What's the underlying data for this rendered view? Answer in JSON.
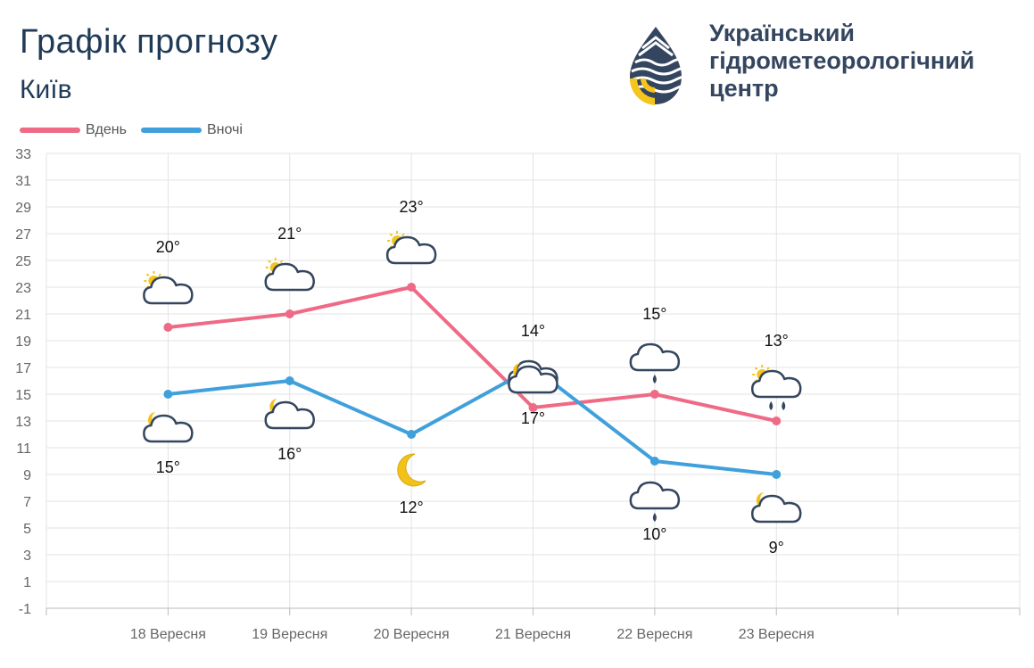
{
  "header": {
    "title": "Графік прогнозу",
    "city": "Київ",
    "org_line1": "Український",
    "org_line2": "гідрометеорологічний",
    "org_line3": "центр"
  },
  "legend": {
    "day_label": "Вдень",
    "night_label": "Вночі"
  },
  "colors": {
    "day": "#ee6a85",
    "night": "#3fa0dc",
    "title": "#1f3b57",
    "logo_dark": "#34465f",
    "logo_yellow": "#f5c51c"
  },
  "chart_data": {
    "type": "line",
    "categories": [
      "18 Вересня",
      "19 Вересня",
      "20 Вересня",
      "21 Вересня",
      "22 Вересня",
      "23 Вересня"
    ],
    "series": [
      {
        "name": "Вдень",
        "values": [
          20,
          21,
          23,
          14,
          15,
          13
        ],
        "labels": [
          "20°",
          "21°",
          "23°",
          "14°",
          "15°",
          "13°"
        ],
        "icons": [
          "sun-cloud-icon",
          "sun-cloud-icon",
          "sun-cloud-icon",
          "cloud-icon",
          "cloud-rain-icon",
          "sun-cloud-rain-icon"
        ]
      },
      {
        "name": "Вночі",
        "values": [
          15,
          16,
          12,
          17,
          10,
          9
        ],
        "labels": [
          "15°",
          "16°",
          "12°",
          "17°",
          "10°",
          "9°"
        ],
        "icons": [
          "moon-cloud-icon",
          "moon-cloud-icon",
          "moon-icon",
          "moon-cloud-icon",
          "cloud-rain-icon",
          "moon-cloud-icon"
        ]
      }
    ],
    "y_ticks": [
      33,
      31,
      29,
      27,
      25,
      23,
      21,
      19,
      17,
      15,
      13,
      11,
      9,
      7,
      5,
      3,
      1,
      -1
    ],
    "ylim": [
      -1,
      33
    ],
    "grid": true,
    "legend_position": "top-left"
  }
}
